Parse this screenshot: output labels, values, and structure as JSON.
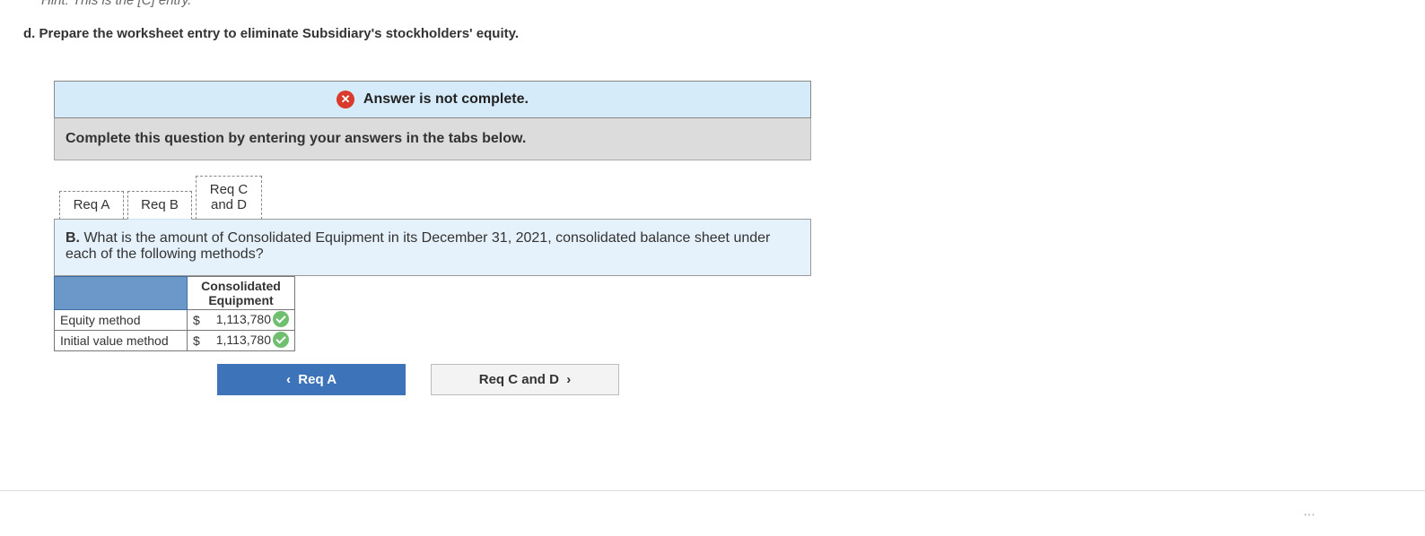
{
  "hint": "Hint: This is the [C] entry.",
  "prompt": "d. Prepare the worksheet entry to eliminate Subsidiary's stockholders' equity.",
  "status": {
    "icon": "x-icon",
    "text": "Answer is not complete.",
    "bg": "#d6ebf9",
    "icon_bg": "#d93a2b"
  },
  "instruction": "Complete this question by entering your answers in the tabs below.",
  "tabs": [
    {
      "label": "Req A",
      "active": false
    },
    {
      "label": "Req B",
      "active": true
    },
    {
      "label": "Req C\nand D",
      "active": false
    }
  ],
  "tab_body": {
    "lead": "B.",
    "text": "What is the amount of Consolidated Equipment in its December 31, 2021, consolidated balance sheet under each of the following methods?"
  },
  "table": {
    "header_blank_bg": "#6b97c9",
    "col_header": "Consolidated Equipment",
    "rows": [
      {
        "label": "Equity method",
        "currency": "$",
        "value": "1,113,780",
        "correct": true
      },
      {
        "label": "Initial value method",
        "currency": "$",
        "value": "1,113,780",
        "correct": true
      }
    ],
    "check_color": "#6fbf6f"
  },
  "nav": {
    "prev": {
      "chev": "‹",
      "label": "Req A"
    },
    "next": {
      "label": "Req C and D",
      "chev": "›"
    },
    "prev_bg": "#3d73b8",
    "next_bg": "#f3f3f3"
  },
  "footer": "…"
}
